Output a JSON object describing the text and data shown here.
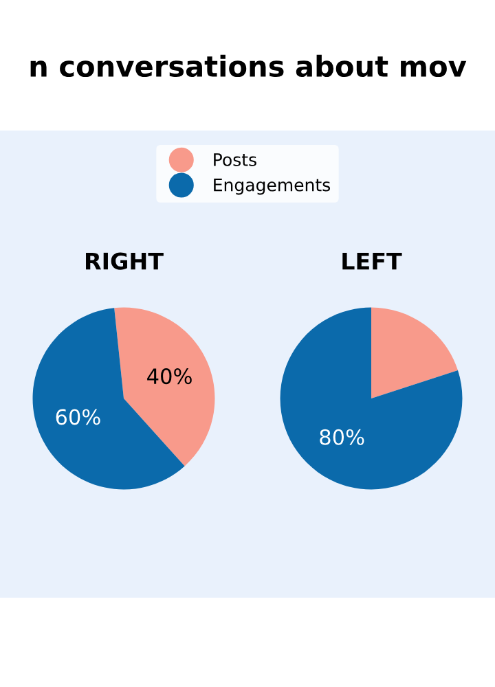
{
  "chart_data": [
    {
      "type": "pie",
      "title": "n conversations about mov",
      "subtitle": "RIGHT",
      "categories": [
        "Posts",
        "Engagements"
      ],
      "values": [
        40,
        60
      ],
      "colors": [
        "#f89a8b",
        "#0b6aab"
      ],
      "value_labels": [
        "40%",
        "60%"
      ],
      "legend": "top"
    },
    {
      "type": "pie",
      "subtitle": "LEFT",
      "categories": [
        null,
        null
      ],
      "values": [
        20,
        80
      ],
      "colors": [
        "#f89a8b",
        "#0b6aab"
      ],
      "value_labels": [
        null,
        "80%"
      ]
    }
  ]
}
